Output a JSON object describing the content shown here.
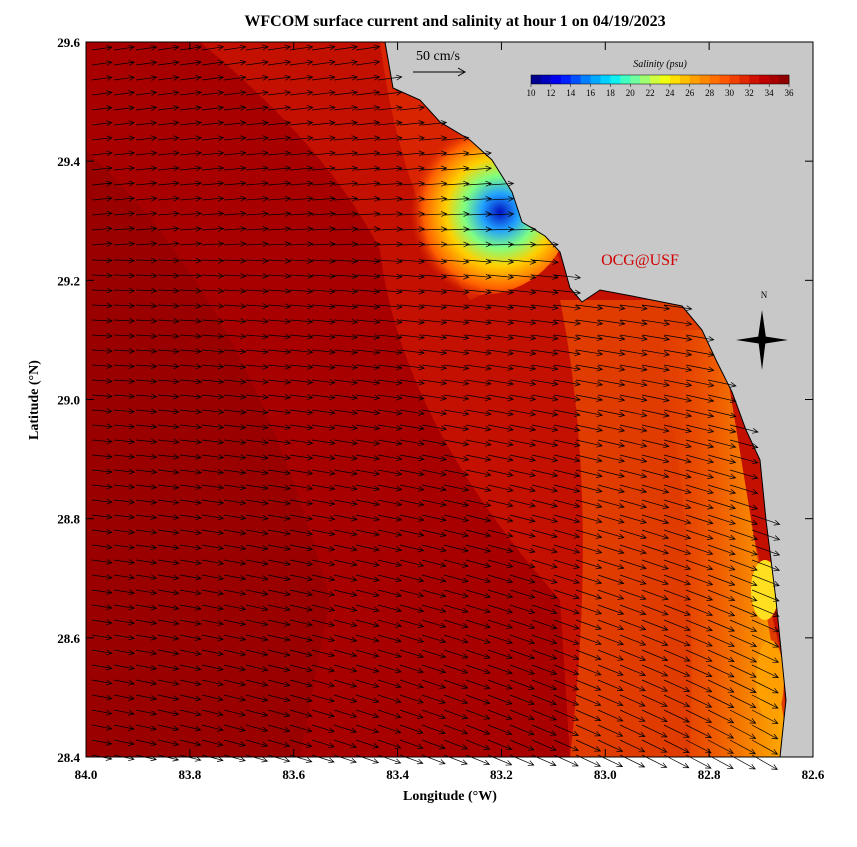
{
  "title": "WFCOM surface current and salinity at hour 1 on 04/19/2023",
  "map": {
    "xlabel": "Longitude (°W)",
    "ylabel": "Latitude (°N)",
    "xlim": [
      84.0,
      82.6
    ],
    "ylim": [
      28.4,
      29.6
    ],
    "xticks": [
      {
        "value": 84.0,
        "label": "84.0"
      },
      {
        "value": 83.8,
        "label": "83.8"
      },
      {
        "value": 83.6,
        "label": "83.6"
      },
      {
        "value": 83.4,
        "label": "83.4"
      },
      {
        "value": 83.2,
        "label": "83.2"
      },
      {
        "value": 83.0,
        "label": "83.0"
      },
      {
        "value": 82.8,
        "label": "82.8"
      },
      {
        "value": 82.6,
        "label": "82.6"
      }
    ],
    "yticks": [
      {
        "value": 28.4,
        "label": "28.4"
      },
      {
        "value": 28.6,
        "label": "28.6"
      },
      {
        "value": 28.8,
        "label": "28.8"
      },
      {
        "value": 29.0,
        "label": "29.0"
      },
      {
        "value": 29.2,
        "label": "29.2"
      },
      {
        "value": 29.4,
        "label": "29.4"
      },
      {
        "value": 29.6,
        "label": "29.6"
      }
    ],
    "scale_label": "50 cm/s",
    "watermark": "OCG@USF",
    "compass": "N",
    "colorbar": {
      "title": "Salinity (psu)",
      "ticks": [
        10,
        12,
        14,
        16,
        18,
        20,
        22,
        24,
        26,
        28,
        30,
        32,
        34,
        36
      ],
      "colors": [
        "#00008f",
        "#0000bf",
        "#0000ef",
        "#0020ff",
        "#0050ff",
        "#0080ff",
        "#00a8ff",
        "#00d0ff",
        "#10f0f0",
        "#40ffc0",
        "#70ffa0",
        "#a0ff70",
        "#d0ff40",
        "#f0ff10",
        "#ffe000",
        "#ffc000",
        "#ffa000",
        "#ff8800",
        "#ff7000",
        "#ff5800",
        "#f04000",
        "#e02800",
        "#d01000",
        "#c00000",
        "#a80000",
        "#900000"
      ]
    }
  }
}
